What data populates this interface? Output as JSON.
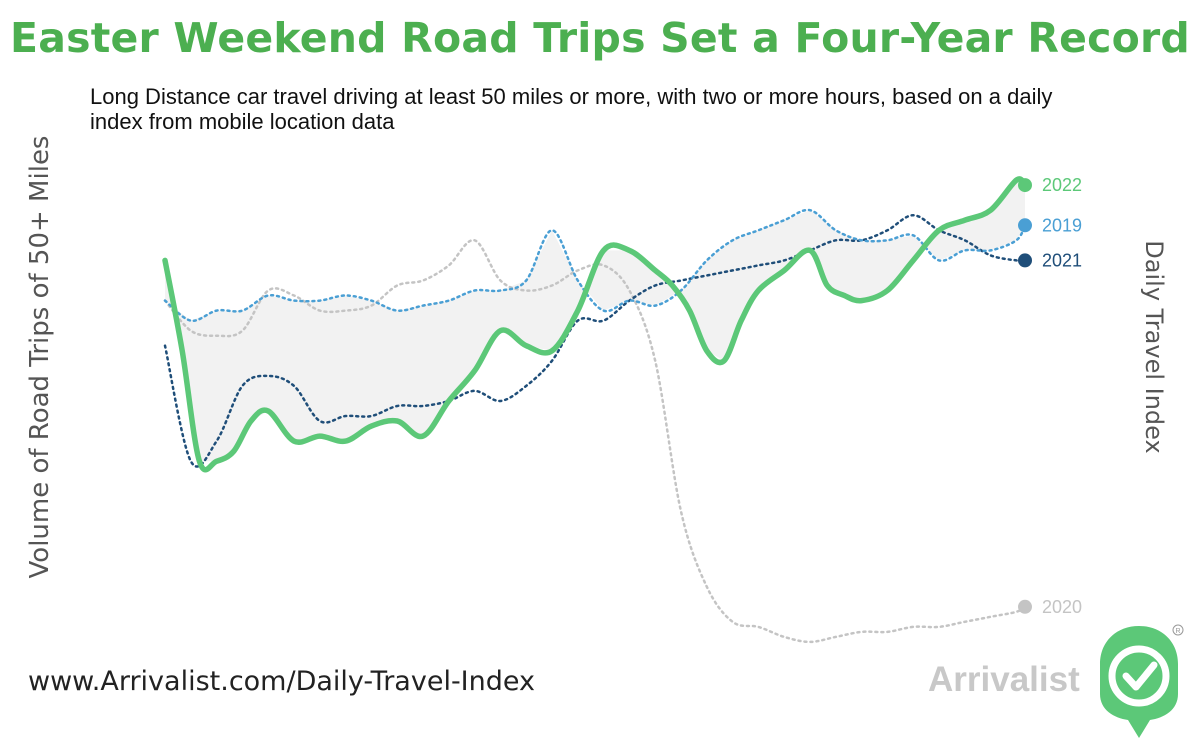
{
  "title": "Easter Weekend Road Trips Set a Four-Year Record",
  "subtitle": "Long Distance car travel driving at least 50 miles or more, with two or more hours, based on a daily index from mobile location data",
  "left_axis_label": "Volume of Road Trips of 50+ Miles",
  "right_axis_label": "Daily Travel Index",
  "url": "www.Arrivalist.com/Daily-Travel-Index",
  "brand": "Arrivalist",
  "colors": {
    "y2022": "#5cc878",
    "y2019": "#4a9fd4",
    "y2021": "#1f4e79",
    "y2020": "#c4c4c4",
    "title": "#4caf50",
    "band": "#f2f2f2"
  },
  "chart_data": {
    "type": "line",
    "xlim": [
      0,
      100
    ],
    "ylim": [
      0,
      100
    ],
    "grid": false,
    "legend": "right-end labels",
    "shaded_band": "between 2022 and 2019",
    "series": [
      {
        "name": "2022",
        "style": "solid",
        "x": [
          0,
          2,
          4,
          6,
          8,
          10,
          12,
          15,
          18,
          21,
          24,
          27,
          30,
          33,
          36,
          39,
          42,
          45,
          48,
          51,
          54,
          57,
          59,
          61,
          63,
          65,
          67,
          69,
          72,
          75,
          77,
          79,
          81,
          84,
          87,
          90,
          93,
          96,
          99,
          100
        ],
        "y": [
          80,
          62,
          40,
          40,
          42,
          48,
          50,
          44,
          45,
          44,
          47,
          48,
          45,
          52,
          58,
          66,
          63,
          62,
          70,
          82,
          82,
          78,
          75,
          70,
          62,
          60,
          68,
          74,
          78,
          82,
          75,
          73,
          72,
          74,
          80,
          86,
          88,
          90,
          96,
          95
        ]
      },
      {
        "name": "2019",
        "style": "dotted",
        "x": [
          0,
          3,
          6,
          9,
          12,
          15,
          18,
          21,
          24,
          27,
          30,
          33,
          36,
          39,
          42,
          45,
          48,
          51,
          54,
          57,
          60,
          63,
          66,
          69,
          72,
          75,
          78,
          81,
          84,
          87,
          90,
          93,
          96,
          99,
          100
        ],
        "y": [
          72,
          68,
          70,
          70,
          73,
          72,
          72,
          73,
          72,
          70,
          71,
          72,
          74,
          74,
          76,
          86,
          76,
          70,
          72,
          71,
          74,
          80,
          84,
          86,
          88,
          90,
          86,
          84,
          84,
          85,
          80,
          82,
          82,
          84,
          87
        ]
      },
      {
        "name": "2021",
        "style": "dotted",
        "x": [
          0,
          3,
          6,
          9,
          12,
          15,
          18,
          21,
          24,
          27,
          30,
          33,
          36,
          39,
          42,
          45,
          48,
          51,
          54,
          57,
          60,
          63,
          66,
          69,
          72,
          75,
          78,
          81,
          84,
          87,
          90,
          93,
          96,
          99,
          100
        ],
        "y": [
          63,
          40,
          44,
          55,
          57,
          55,
          48,
          49,
          49,
          51,
          51,
          52,
          54,
          52,
          55,
          60,
          68,
          68,
          72,
          75,
          76,
          77,
          78,
          79,
          80,
          82,
          84,
          84,
          86,
          89,
          86,
          84,
          81,
          80,
          80
        ]
      },
      {
        "name": "2020",
        "style": "dotted",
        "x": [
          0,
          3,
          6,
          9,
          12,
          15,
          18,
          21,
          24,
          27,
          30,
          33,
          36,
          39,
          42,
          45,
          48,
          51,
          54,
          57,
          60,
          63,
          66,
          69,
          72,
          75,
          78,
          81,
          84,
          87,
          90,
          93,
          96,
          99,
          100
        ],
        "y": [
          72,
          66,
          65,
          66,
          74,
          73,
          70,
          70,
          71,
          75,
          76,
          79,
          84,
          76,
          74,
          75,
          78,
          79,
          74,
          60,
          30,
          15,
          8,
          7,
          5,
          4,
          5,
          6,
          6,
          7,
          7,
          8,
          9,
          10,
          11
        ]
      }
    ],
    "end_labels": [
      "2022",
      "2019",
      "2021",
      "2020"
    ]
  }
}
